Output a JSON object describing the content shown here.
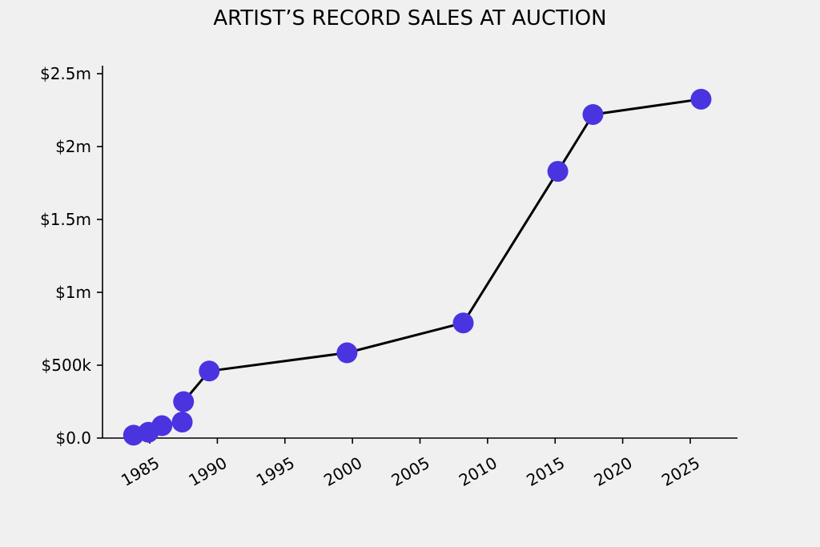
{
  "chart_data": {
    "type": "line",
    "title": "ARTIST’S RECORD SALES AT AUCTION",
    "xlabel": "",
    "ylabel": "",
    "x": [
      1983.8,
      1984.9,
      1985.9,
      1987.4,
      1987.5,
      1989.4,
      1999.6,
      2008.2,
      2015.2,
      2017.8,
      2025.8
    ],
    "y": [
      20000,
      40000,
      85000,
      110000,
      250000,
      460000,
      585000,
      790000,
      1830000,
      2220000,
      2325000
    ],
    "xlim": [
      1981.5,
      2028.5
    ],
    "ylim": [
      0,
      2500000
    ],
    "x_ticks": [
      1985,
      1990,
      1995,
      2000,
      2005,
      2010,
      2015,
      2020,
      2025
    ],
    "x_tick_labels": [
      "1985",
      "1990",
      "1995",
      "2000",
      "2005",
      "2010",
      "2015",
      "2020",
      "2025"
    ],
    "y_ticks": [
      0,
      500000,
      1000000,
      1500000,
      2000000,
      2500000
    ],
    "y_tick_labels": [
      "$0.0",
      "$500k",
      "$1m",
      "$1.5m",
      "$2m",
      "$2.5m"
    ],
    "grid": false,
    "line_color": "#000000",
    "marker_color": "#4a34e0",
    "background_color": "#f0f0f0"
  }
}
